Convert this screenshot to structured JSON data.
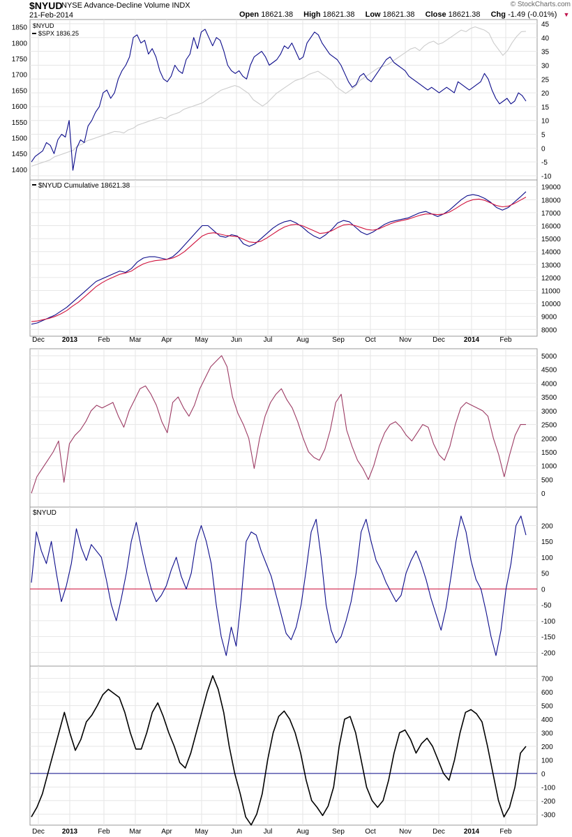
{
  "header": {
    "symbol": "$NYUD",
    "name": "NYSE Advance-Decline Volume INDX",
    "date": "21-Feb-2014",
    "open_label": "Open",
    "open": "18621.38",
    "high_label": "High",
    "high": "18621.38",
    "low_label": "Low",
    "low": "18621.38",
    "close_label": "Close",
    "close": "18621.38",
    "chg_label": "Chg",
    "chg": "-1.49 (-0.01%)",
    "credit": "© StockCharts.com"
  },
  "colors": {
    "grid": "#e6e6e6",
    "frame": "#999999",
    "navy": "#0b0b8a",
    "spx": "#cccccc",
    "red": "#d0103a",
    "maroon": "#9c3a63",
    "black": "#000000"
  },
  "x_axis": {
    "labels": [
      "Dec",
      "2013",
      "Feb",
      "Mar",
      "Apr",
      "May",
      "Jun",
      "Jul",
      "Aug",
      "Sep",
      "Oct",
      "Nov",
      "Dec",
      "2014",
      "Feb"
    ],
    "bold": [
      false,
      true,
      false,
      false,
      false,
      false,
      false,
      false,
      false,
      false,
      false,
      false,
      false,
      true,
      false
    ]
  },
  "chart_data": [
    {
      "panel": 1,
      "type": "line",
      "legend": [
        "$NYUD",
        "$SPX 1836.25"
      ],
      "series": [
        {
          "name": "$NYUD",
          "axis": "right",
          "ylim": [
            -10,
            45
          ],
          "ticks": [
            -10,
            -5,
            0,
            5,
            10,
            15,
            20,
            25,
            30,
            35,
            40,
            45
          ],
          "values": [
            -5,
            -3,
            -2,
            -1,
            2,
            1,
            -2,
            3,
            5,
            4,
            10,
            -8,
            0,
            3,
            2,
            8,
            10,
            13,
            15,
            20,
            21,
            18,
            20,
            25,
            28,
            30,
            33,
            40,
            41,
            38,
            39,
            34,
            36,
            33,
            28,
            25,
            24,
            26,
            30,
            28,
            27,
            32,
            34,
            40,
            36,
            42,
            43,
            40,
            37,
            40,
            39,
            35,
            30,
            28,
            27,
            28,
            26,
            25,
            30,
            33,
            34,
            35,
            33,
            30,
            31,
            32,
            34,
            37,
            36,
            38,
            35,
            32,
            33,
            38,
            40,
            42,
            41,
            38,
            36,
            34,
            33,
            32,
            30,
            27,
            24,
            22,
            23,
            26,
            27,
            25,
            24,
            26,
            28,
            30,
            32,
            33,
            31,
            30,
            29,
            28,
            26,
            25,
            24,
            23,
            22,
            21,
            22,
            21,
            20,
            21,
            22,
            21,
            20,
            24,
            23,
            22,
            21,
            22,
            23,
            24,
            27,
            25,
            21,
            18,
            16,
            17,
            18,
            16,
            17,
            20,
            19,
            17
          ]
        },
        {
          "name": "$SPX",
          "axis": "left",
          "ylim": [
            1380,
            1860
          ],
          "ticks": [
            1400,
            1450,
            1500,
            1550,
            1600,
            1650,
            1700,
            1750,
            1800,
            1850
          ],
          "values": [
            1410,
            1415,
            1420,
            1425,
            1430,
            1440,
            1445,
            1450,
            1455,
            1460,
            1475,
            1480,
            1490,
            1495,
            1500,
            1505,
            1510,
            1515,
            1520,
            1519,
            1515,
            1525,
            1530,
            1540,
            1545,
            1550,
            1555,
            1560,
            1565,
            1560,
            1570,
            1575,
            1580,
            1590,
            1595,
            1600,
            1605,
            1610,
            1620,
            1630,
            1640,
            1650,
            1655,
            1660,
            1665,
            1660,
            1650,
            1640,
            1620,
            1610,
            1600,
            1610,
            1625,
            1640,
            1650,
            1660,
            1670,
            1680,
            1685,
            1690,
            1700,
            1705,
            1710,
            1700,
            1690,
            1680,
            1660,
            1650,
            1640,
            1650,
            1660,
            1680,
            1690,
            1700,
            1710,
            1720,
            1725,
            1730,
            1740,
            1750,
            1760,
            1770,
            1780,
            1785,
            1775,
            1790,
            1800,
            1805,
            1795,
            1800,
            1810,
            1820,
            1830,
            1840,
            1835,
            1845,
            1850,
            1845,
            1840,
            1830,
            1800,
            1780,
            1760,
            1775,
            1800,
            1820,
            1835,
            1836
          ]
        }
      ]
    },
    {
      "panel": 2,
      "type": "line",
      "title": "$NYUD Cumulative 18621.38",
      "ylim": [
        7800,
        19200
      ],
      "ticks": [
        8000,
        9000,
        10000,
        11000,
        12000,
        13000,
        14000,
        15000,
        16000,
        17000,
        18000,
        19000
      ],
      "series": [
        {
          "name": "$NYUD Cumulative",
          "values": [
            8400,
            8500,
            8700,
            8900,
            9100,
            9400,
            9700,
            10100,
            10500,
            10900,
            11300,
            11700,
            11900,
            12100,
            12300,
            12500,
            12400,
            12700,
            13200,
            13500,
            13600,
            13600,
            13500,
            13400,
            13600,
            14000,
            14500,
            15000,
            15500,
            16000,
            16000,
            15600,
            15200,
            15100,
            15300,
            15200,
            14600,
            14400,
            14600,
            15000,
            15400,
            15800,
            16100,
            16300,
            16400,
            16200,
            15900,
            15500,
            15200,
            15000,
            15300,
            15700,
            16200,
            16400,
            16300,
            15900,
            15500,
            15300,
            15500,
            15800,
            16100,
            16300,
            16400,
            16500,
            16600,
            16800,
            17000,
            17100,
            16900,
            16700,
            16900,
            17200,
            17600,
            18000,
            18300,
            18400,
            18300,
            18100,
            17800,
            17400,
            17200,
            17400,
            17800,
            18200,
            18621
          ]
        },
        {
          "name": "Moving Average",
          "values": [
            8600,
            8650,
            8750,
            8850,
            9000,
            9200,
            9450,
            9800,
            10100,
            10500,
            10900,
            11300,
            11600,
            11850,
            12050,
            12250,
            12350,
            12500,
            12800,
            13050,
            13200,
            13300,
            13350,
            13400,
            13500,
            13700,
            14000,
            14400,
            14800,
            15200,
            15400,
            15450,
            15350,
            15250,
            15200,
            15150,
            14950,
            14750,
            14700,
            14800,
            15050,
            15350,
            15650,
            15900,
            16050,
            16100,
            16000,
            15800,
            15600,
            15400,
            15450,
            15600,
            15850,
            16050,
            16100,
            16000,
            15850,
            15700,
            15650,
            15750,
            15950,
            16150,
            16300,
            16400,
            16500,
            16650,
            16800,
            16900,
            16900,
            16850,
            16900,
            17050,
            17300,
            17600,
            17850,
            18000,
            18050,
            17950,
            17750,
            17550,
            17450,
            17500,
            17700,
            17950,
            18200
          ]
        }
      ]
    },
    {
      "panel": 3,
      "type": "line",
      "ylim": [
        -350,
        5100
      ],
      "ticks": [
        0,
        500,
        1000,
        1500,
        2000,
        2500,
        3000,
        3500,
        4000,
        4500,
        5000
      ],
      "series": [
        {
          "name": "",
          "values": [
            0,
            600,
            900,
            1200,
            1500,
            1900,
            400,
            1800,
            2100,
            2300,
            2600,
            3000,
            3200,
            3100,
            3200,
            3300,
            2800,
            2400,
            3000,
            3400,
            3800,
            3900,
            3600,
            3200,
            2600,
            2200,
            3300,
            3500,
            3100,
            2800,
            3200,
            3800,
            4200,
            4600,
            4800,
            5000,
            4600,
            3500,
            2900,
            2500,
            2000,
            900,
            2000,
            2800,
            3300,
            3600,
            3800,
            3400,
            3100,
            2600,
            2000,
            1500,
            1300,
            1200,
            1600,
            2300,
            3300,
            3600,
            2300,
            1700,
            1200,
            900,
            500,
            1000,
            1700,
            2200,
            2500,
            2600,
            2400,
            2100,
            1900,
            2200,
            2500,
            2400,
            1800,
            1400,
            1200,
            1700,
            2500,
            3100,
            3300,
            3200,
            3100,
            3000,
            2800,
            2000,
            1400,
            600,
            1400,
            2100,
            2500,
            2500
          ]
        }
      ]
    },
    {
      "panel": 4,
      "type": "line",
      "title": "$NYUD",
      "ylim": [
        -230,
        245
      ],
      "ticks": [
        -200,
        -150,
        -100,
        -50,
        0,
        50,
        100,
        150,
        200
      ],
      "zero_line": 0,
      "series": [
        {
          "name": "$NYUD",
          "values": [
            20,
            180,
            120,
            80,
            150,
            50,
            -40,
            10,
            80,
            190,
            130,
            90,
            140,
            120,
            100,
            30,
            -50,
            -100,
            -30,
            50,
            150,
            210,
            130,
            60,
            0,
            -40,
            -20,
            10,
            60,
            100,
            40,
            0,
            50,
            150,
            200,
            150,
            80,
            -50,
            -150,
            -210,
            -120,
            -180,
            -30,
            150,
            180,
            170,
            120,
            80,
            40,
            -20,
            -80,
            -140,
            -160,
            -120,
            -50,
            60,
            180,
            220,
            100,
            -50,
            -130,
            -170,
            -150,
            -100,
            -40,
            50,
            180,
            220,
            150,
            90,
            60,
            20,
            -10,
            -40,
            -20,
            50,
            90,
            120,
            80,
            30,
            -30,
            -80,
            -130,
            -60,
            40,
            150,
            230,
            180,
            90,
            30,
            0,
            -70,
            -150,
            -210,
            -130,
            0,
            80,
            200,
            230,
            170
          ]
        }
      ]
    },
    {
      "panel": 5,
      "type": "line",
      "ylim": [
        -350,
        760
      ],
      "ticks": [
        -300,
        -200,
        -100,
        0,
        100,
        200,
        300,
        400,
        500,
        600,
        700
      ],
      "zero_line": 0,
      "series": [
        {
          "name": "",
          "values": [
            -320,
            -250,
            -150,
            0,
            150,
            300,
            450,
            300,
            170,
            250,
            380,
            430,
            500,
            580,
            620,
            590,
            560,
            450,
            300,
            180,
            180,
            300,
            450,
            520,
            420,
            300,
            200,
            80,
            40,
            150,
            300,
            450,
            600,
            720,
            620,
            450,
            200,
            0,
            -150,
            -320,
            -380,
            -300,
            -150,
            100,
            300,
            420,
            460,
            400,
            300,
            150,
            -50,
            -200,
            -250,
            -310,
            -240,
            -100,
            200,
            400,
            420,
            300,
            100,
            -100,
            -200,
            -250,
            -200,
            -50,
            150,
            300,
            320,
            250,
            150,
            220,
            260,
            200,
            100,
            0,
            -50,
            100,
            300,
            450,
            470,
            440,
            380,
            200,
            0,
            -200,
            -320,
            -250,
            -100,
            150,
            200
          ]
        }
      ]
    }
  ]
}
